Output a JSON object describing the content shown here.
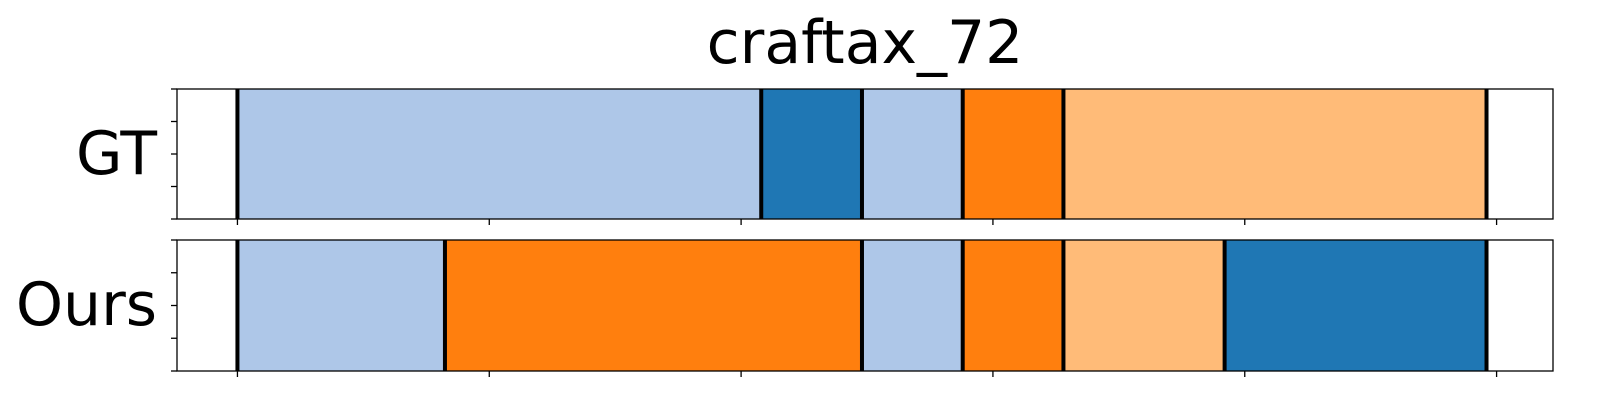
{
  "chart_data": {
    "type": "bar",
    "title": "craftax_72",
    "rows": [
      {
        "label": "GT",
        "segments": [
          {
            "start": 0,
            "end": 26,
            "color": "#aec7e8"
          },
          {
            "start": 26,
            "end": 31,
            "color": "#1f77b4"
          },
          {
            "start": 31,
            "end": 36,
            "color": "#aec7e8"
          },
          {
            "start": 36,
            "end": 41,
            "color": "#ff7f0e"
          },
          {
            "start": 41,
            "end": 62,
            "color": "#ffbb78"
          }
        ]
      },
      {
        "label": "Ours",
        "segments": [
          {
            "start": 0,
            "end": 10.3,
            "color": "#aec7e8"
          },
          {
            "start": 10.3,
            "end": 31,
            "color": "#ff7f0e"
          },
          {
            "start": 31,
            "end": 36,
            "color": "#aec7e8"
          },
          {
            "start": 36,
            "end": 41,
            "color": "#ff7f0e"
          },
          {
            "start": 41,
            "end": 49,
            "color": "#ffbb78"
          },
          {
            "start": 49,
            "end": 62,
            "color": "#1f77b4"
          }
        ]
      }
    ],
    "xlim": [
      -3,
      65.3
    ],
    "x_ticks": [
      0,
      12.5,
      25,
      37.5,
      50,
      62.5
    ],
    "y_ticks": [
      0,
      0.25,
      0.5,
      0.75,
      1.0
    ],
    "ylim": [
      0,
      1
    ],
    "grid": false,
    "legend": "none"
  }
}
